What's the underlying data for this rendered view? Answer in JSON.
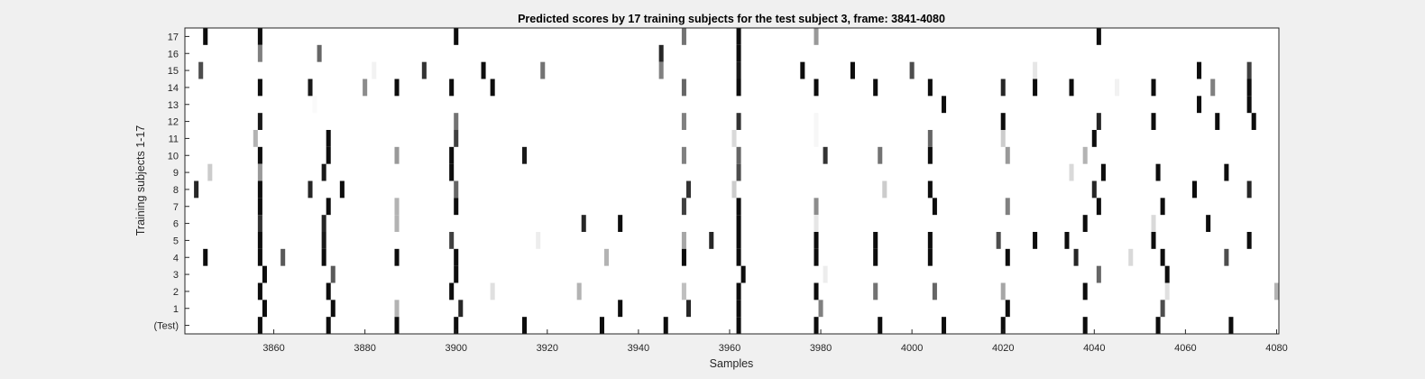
{
  "chart_data": {
    "type": "heatmap",
    "title": "Predicted scores by 17 training subjects for the test subject 3, frame: 3841-4080",
    "xlabel": "Samples",
    "ylabel": "Training subjects 1-17",
    "xlim": [
      3841,
      4080
    ],
    "x_ticks": [
      3860,
      3880,
      3900,
      3920,
      3940,
      3960,
      3980,
      4000,
      4020,
      4040,
      4060,
      4080
    ],
    "rows": [
      "(Test)",
      "1",
      "2",
      "3",
      "4",
      "5",
      "6",
      "7",
      "8",
      "9",
      "10",
      "11",
      "12",
      "13",
      "14",
      "15",
      "16",
      "17"
    ],
    "colormap": "white-to-black",
    "color_range": [
      0,
      1
    ],
    "grid": false,
    "background_color": "#ffffff",
    "cells": [
      {
        "row": "17",
        "marks": [
          [
            3845,
            0.95
          ],
          [
            3857,
            0.95
          ],
          [
            3900,
            0.95
          ],
          [
            3950,
            0.55
          ],
          [
            3962,
            0.95
          ],
          [
            3979,
            0.4
          ],
          [
            4041,
            0.95
          ]
        ]
      },
      {
        "row": "16",
        "marks": [
          [
            3857,
            0.5
          ],
          [
            3870,
            0.6
          ],
          [
            3945,
            0.85
          ],
          [
            3962,
            0.95
          ]
        ]
      },
      {
        "row": "15",
        "marks": [
          [
            3844,
            0.7
          ],
          [
            3882,
            0.05
          ],
          [
            3893,
            0.8
          ],
          [
            3906,
            0.95
          ],
          [
            3919,
            0.55
          ],
          [
            3945,
            0.5
          ],
          [
            3962,
            0.9
          ],
          [
            3976,
            0.95
          ],
          [
            3987,
            0.95
          ],
          [
            4000,
            0.7
          ],
          [
            4027,
            0.1
          ],
          [
            4063,
            0.95
          ],
          [
            4074,
            0.75
          ]
        ]
      },
      {
        "row": "14",
        "marks": [
          [
            3857,
            0.95
          ],
          [
            3868,
            0.9
          ],
          [
            3880,
            0.45
          ],
          [
            3887,
            0.95
          ],
          [
            3899,
            0.95
          ],
          [
            3908,
            0.95
          ],
          [
            3950,
            0.6
          ],
          [
            3962,
            0.95
          ],
          [
            3979,
            0.95
          ],
          [
            3992,
            0.95
          ],
          [
            4004,
            0.95
          ],
          [
            4020,
            0.85
          ],
          [
            4027,
            0.95
          ],
          [
            4035,
            0.95
          ],
          [
            4045,
            0.05
          ],
          [
            4053,
            0.95
          ],
          [
            4066,
            0.5
          ],
          [
            4074,
            0.95
          ]
        ]
      },
      {
        "row": "13",
        "marks": [
          [
            3869,
            0.02
          ],
          [
            4007,
            0.95
          ],
          [
            4063,
            0.95
          ],
          [
            4074,
            0.95
          ]
        ]
      },
      {
        "row": "12",
        "marks": [
          [
            3857,
            0.9
          ],
          [
            3900,
            0.55
          ],
          [
            3950,
            0.5
          ],
          [
            3962,
            0.8
          ],
          [
            3979,
            0.03
          ],
          [
            4020,
            0.95
          ],
          [
            4041,
            0.85
          ],
          [
            4053,
            0.95
          ],
          [
            4067,
            0.95
          ],
          [
            4075,
            0.95
          ]
        ]
      },
      {
        "row": "11",
        "marks": [
          [
            3856,
            0.3
          ],
          [
            3872,
            0.95
          ],
          [
            3900,
            0.75
          ],
          [
            3961,
            0.15
          ],
          [
            3979,
            0.03
          ],
          [
            4004,
            0.6
          ],
          [
            4020,
            0.2
          ],
          [
            4040,
            0.95
          ]
        ]
      },
      {
        "row": "10",
        "marks": [
          [
            3857,
            0.95
          ],
          [
            3872,
            0.95
          ],
          [
            3887,
            0.4
          ],
          [
            3899,
            0.95
          ],
          [
            3915,
            0.9
          ],
          [
            3950,
            0.5
          ],
          [
            3962,
            0.6
          ],
          [
            3981,
            0.8
          ],
          [
            3993,
            0.55
          ],
          [
            4004,
            0.95
          ],
          [
            4021,
            0.4
          ],
          [
            4038,
            0.3
          ]
        ]
      },
      {
        "row": "9",
        "marks": [
          [
            3846,
            0.2
          ],
          [
            3857,
            0.4
          ],
          [
            3871,
            0.9
          ],
          [
            3899,
            0.95
          ],
          [
            3962,
            0.7
          ],
          [
            4035,
            0.15
          ],
          [
            4042,
            0.95
          ],
          [
            4054,
            0.95
          ],
          [
            4069,
            0.95
          ]
        ]
      },
      {
        "row": "8",
        "marks": [
          [
            3843,
            0.85
          ],
          [
            3857,
            0.95
          ],
          [
            3868,
            0.85
          ],
          [
            3875,
            0.95
          ],
          [
            3900,
            0.6
          ],
          [
            3951,
            0.8
          ],
          [
            3961,
            0.2
          ],
          [
            3994,
            0.2
          ],
          [
            4004,
            0.95
          ],
          [
            4040,
            0.85
          ],
          [
            4062,
            0.95
          ],
          [
            4074,
            0.85
          ]
        ]
      },
      {
        "row": "7",
        "marks": [
          [
            3857,
            0.95
          ],
          [
            3872,
            0.95
          ],
          [
            3887,
            0.3
          ],
          [
            3900,
            0.95
          ],
          [
            3950,
            0.75
          ],
          [
            3962,
            0.95
          ],
          [
            3979,
            0.45
          ],
          [
            4005,
            0.95
          ],
          [
            4021,
            0.5
          ],
          [
            4041,
            0.95
          ],
          [
            4055,
            0.95
          ]
        ]
      },
      {
        "row": "6",
        "marks": [
          [
            3857,
            0.8
          ],
          [
            3871,
            0.85
          ],
          [
            3887,
            0.3
          ],
          [
            3928,
            0.85
          ],
          [
            3936,
            0.95
          ],
          [
            3962,
            0.95
          ],
          [
            3979,
            0.1
          ],
          [
            4038,
            0.95
          ],
          [
            4053,
            0.15
          ],
          [
            4065,
            0.95
          ]
        ]
      },
      {
        "row": "5",
        "marks": [
          [
            3857,
            0.95
          ],
          [
            3871,
            0.9
          ],
          [
            3899,
            0.75
          ],
          [
            3918,
            0.07
          ],
          [
            3950,
            0.35
          ],
          [
            3956,
            0.85
          ],
          [
            3962,
            0.95
          ],
          [
            3979,
            0.95
          ],
          [
            3992,
            0.95
          ],
          [
            4004,
            0.95
          ],
          [
            4019,
            0.7
          ],
          [
            4027,
            0.95
          ],
          [
            4034,
            0.95
          ],
          [
            4053,
            0.95
          ],
          [
            4074,
            0.95
          ]
        ]
      },
      {
        "row": "4",
        "marks": [
          [
            3845,
            0.95
          ],
          [
            3857,
            0.95
          ],
          [
            3862,
            0.65
          ],
          [
            3871,
            0.95
          ],
          [
            3887,
            0.95
          ],
          [
            3900,
            0.95
          ],
          [
            3933,
            0.3
          ],
          [
            3950,
            0.95
          ],
          [
            3962,
            0.95
          ],
          [
            3979,
            0.95
          ],
          [
            3992,
            0.95
          ],
          [
            4004,
            0.95
          ],
          [
            4021,
            0.95
          ],
          [
            4036,
            0.85
          ],
          [
            4048,
            0.15
          ],
          [
            4055,
            0.95
          ],
          [
            4069,
            0.7
          ]
        ]
      },
      {
        "row": "3",
        "marks": [
          [
            3858,
            0.95
          ],
          [
            3873,
            0.65
          ],
          [
            3900,
            0.95
          ],
          [
            3963,
            0.95
          ],
          [
            3981,
            0.07
          ],
          [
            4041,
            0.6
          ],
          [
            4056,
            0.95
          ]
        ]
      },
      {
        "row": "2",
        "marks": [
          [
            3857,
            0.95
          ],
          [
            3872,
            0.95
          ],
          [
            3899,
            0.95
          ],
          [
            3908,
            0.12
          ],
          [
            3927,
            0.3
          ],
          [
            3950,
            0.25
          ],
          [
            3962,
            0.95
          ],
          [
            3979,
            0.95
          ],
          [
            3992,
            0.55
          ],
          [
            4005,
            0.6
          ],
          [
            4020,
            0.35
          ],
          [
            4038,
            0.95
          ],
          [
            4056,
            0.12
          ],
          [
            4080,
            0.3
          ]
        ]
      },
      {
        "row": "1",
        "marks": [
          [
            3858,
            0.95
          ],
          [
            3873,
            0.95
          ],
          [
            3887,
            0.3
          ],
          [
            3901,
            0.85
          ],
          [
            3936,
            0.95
          ],
          [
            3951,
            0.85
          ],
          [
            3962,
            0.95
          ],
          [
            3980,
            0.5
          ],
          [
            4021,
            0.95
          ],
          [
            4055,
            0.7
          ]
        ]
      },
      {
        "row": "(Test)",
        "marks": [
          [
            3857,
            0.95
          ],
          [
            3872,
            0.95
          ],
          [
            3887,
            0.95
          ],
          [
            3900,
            0.95
          ],
          [
            3915,
            0.95
          ],
          [
            3932,
            0.95
          ],
          [
            3946,
            0.95
          ],
          [
            3962,
            0.95
          ],
          [
            3979,
            0.95
          ],
          [
            3993,
            0.95
          ],
          [
            4007,
            0.95
          ],
          [
            4020,
            0.95
          ],
          [
            4038,
            0.95
          ],
          [
            4054,
            0.95
          ],
          [
            4070,
            0.95
          ]
        ]
      }
    ]
  }
}
